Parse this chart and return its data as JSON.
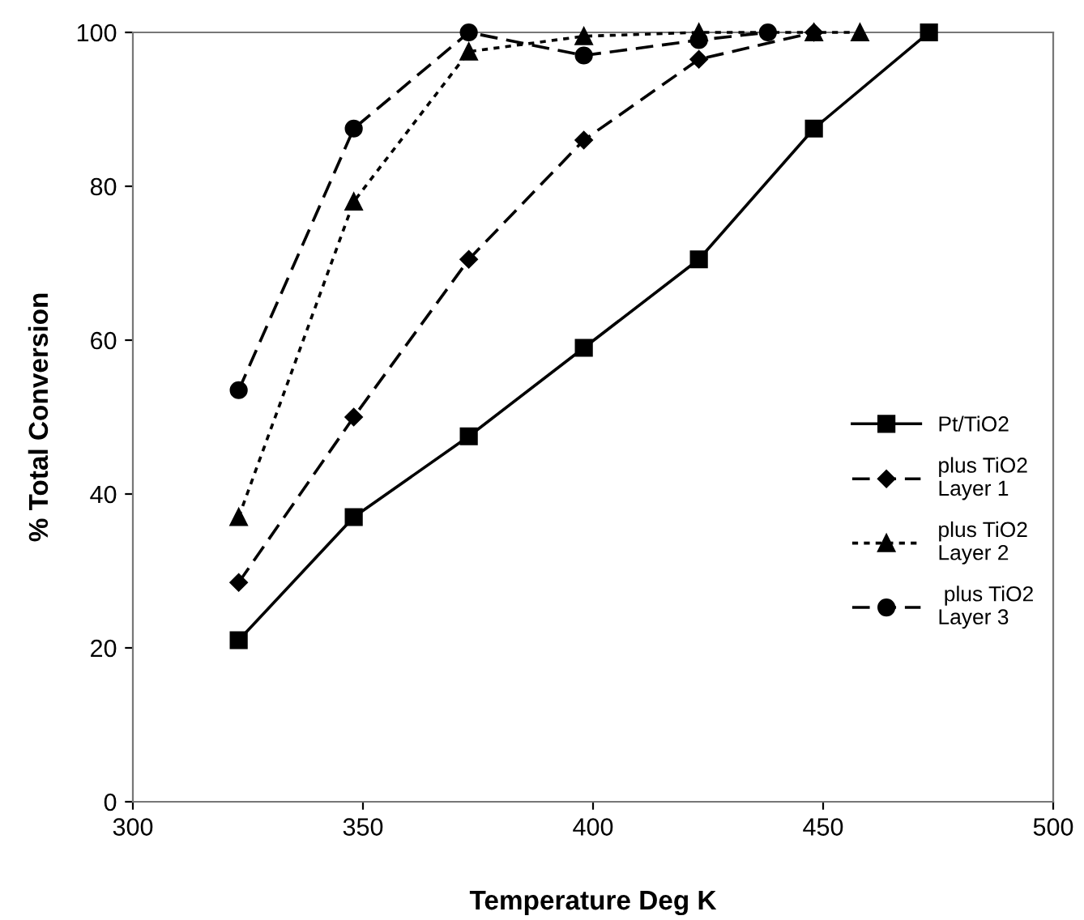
{
  "chart_data": {
    "type": "line",
    "xlabel": "Temperature Deg K",
    "ylabel": "% Total Conversion",
    "xlim": [
      300,
      500
    ],
    "ylim": [
      0,
      100
    ],
    "xticks": [
      300,
      350,
      400,
      450,
      500
    ],
    "yticks": [
      0,
      20,
      40,
      60,
      80,
      100
    ],
    "grid": false,
    "legend": "bottom right",
    "series": [
      {
        "name": "Pt/TiO2",
        "color": "#000000",
        "marker": "square",
        "line_style": "solid",
        "x": [
          323,
          348,
          373,
          398,
          423,
          448,
          473
        ],
        "values": [
          21,
          37,
          47.5,
          59,
          70.5,
          87.5,
          100
        ]
      },
      {
        "name": "plus TiO2\nLayer 1",
        "color": "#000000",
        "marker": "diamond",
        "line_style": "dashed",
        "x": [
          323,
          348,
          373,
          398,
          423,
          448
        ],
        "values": [
          28.5,
          50,
          70.5,
          86,
          96.5,
          100
        ]
      },
      {
        "name": "plus TiO2\nLayer 2",
        "color": "#000000",
        "marker": "triangle",
        "line_style": "dotted",
        "x": [
          323,
          348,
          373,
          398,
          423,
          448,
          458
        ],
        "values": [
          37,
          78,
          97.5,
          99.5,
          100,
          100,
          100
        ]
      },
      {
        "name": " plus TiO2\nLayer 3",
        "color": "#000000",
        "marker": "circle",
        "line_style": "dashed",
        "x": [
          323,
          348,
          373,
          398,
          423,
          438
        ],
        "values": [
          53.5,
          87.5,
          100,
          97,
          99,
          100
        ]
      }
    ]
  }
}
